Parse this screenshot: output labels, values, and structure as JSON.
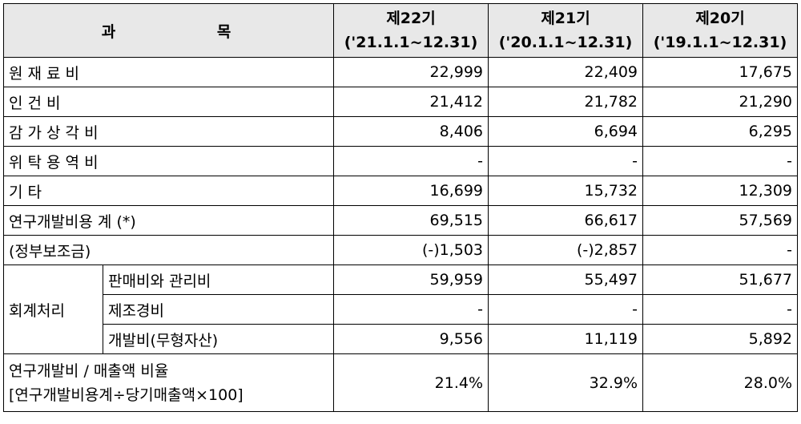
{
  "header": {
    "subject": "과    목",
    "periods": [
      {
        "name": "제22기",
        "range": "('21.1.1~12.31)"
      },
      {
        "name": "제21기",
        "range": "('20.1.1~12.31)"
      },
      {
        "name": "제20기",
        "range": "('19.1.1~12.31)"
      }
    ]
  },
  "rows": [
    {
      "label": "원 재 료 비",
      "values": [
        "22,999",
        "22,409",
        "17,675"
      ]
    },
    {
      "label": "인  건  비",
      "values": [
        "21,412",
        "21,782",
        "21,290"
      ]
    },
    {
      "label": "감 가 상 각 비",
      "values": [
        "8,406",
        "6,694",
        "6,295"
      ]
    },
    {
      "label": "위 탁 용 역 비",
      "values": [
        "-",
        "-",
        "-"
      ]
    },
    {
      "label": "기       타",
      "values": [
        "16,699",
        "15,732",
        "12,309"
      ]
    },
    {
      "label": "연구개발비용 계 (*)",
      "values": [
        "69,515",
        "66,617",
        "57,569"
      ]
    },
    {
      "label": "(정부보조금)",
      "values": [
        "(-)1,503",
        "(-)2,857",
        "-"
      ]
    }
  ],
  "accounting": {
    "group_label": "회계처리",
    "items": [
      {
        "label": "판매비와 관리비",
        "values": [
          "59,959",
          "55,497",
          "51,677"
        ]
      },
      {
        "label": "제조경비",
        "values": [
          "-",
          "-",
          "-"
        ]
      },
      {
        "label": "개발비(무형자산)",
        "values": [
          "9,556",
          "11,119",
          "5,892"
        ]
      }
    ]
  },
  "ratio": {
    "label_line1": "연구개발비 / 매출액 비율",
    "label_line2": "[연구개발비용계÷당기매출액×100]",
    "values": [
      "21.4%",
      "32.9%",
      "28.0%"
    ]
  }
}
